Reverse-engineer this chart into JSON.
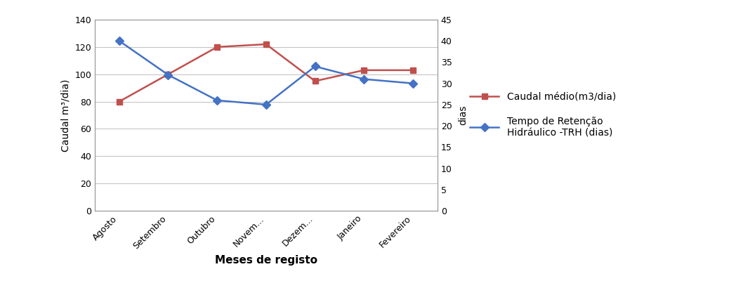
{
  "categories": [
    "Agosto",
    "Setembro",
    "Outubro",
    "Novem...",
    "Dezem...",
    "Janeiro",
    "Fevereiro"
  ],
  "caudal_values": [
    80,
    100,
    120,
    122,
    95,
    103,
    103
  ],
  "trh_values": [
    40,
    32,
    26,
    25,
    34,
    31,
    30
  ],
  "left_ylabel": "Caudal m³/dia)",
  "right_ylabel": "dias",
  "xlabel": "Meses de registo",
  "left_ylim": [
    0,
    140
  ],
  "left_yticks": [
    0,
    20,
    40,
    60,
    80,
    100,
    120,
    140
  ],
  "right_ylim": [
    0,
    45
  ],
  "right_yticks": [
    0,
    5,
    10,
    15,
    20,
    25,
    30,
    35,
    40,
    45
  ],
  "caudal_color": "#c0504d",
  "trh_color": "#4472c4",
  "legend_caudal": "Caudal médio(m3/dia)",
  "legend_trh": "Tempo de Retenção\nHidráulico -TRH (dias)",
  "background_color": "#ffffff",
  "grid_color": "#bfbfbf",
  "fig_width": 10.38,
  "fig_height": 4.0,
  "dpi": 100
}
